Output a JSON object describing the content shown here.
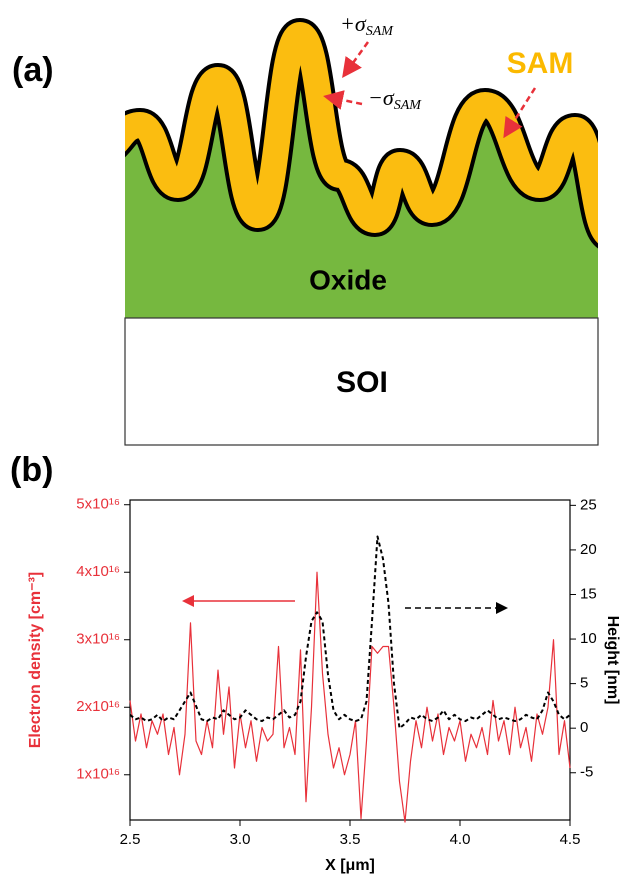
{
  "diagram": {
    "panel_label": "(a)",
    "plus_sigma": {
      "main": "+σ",
      "sub": "SAM"
    },
    "minus_sigma": {
      "main": "−σ",
      "sub": "SAM"
    },
    "sam_label": "SAM",
    "oxide_label": "Oxide",
    "soi_label": "SOI"
  },
  "chart_data": {
    "type": "line",
    "panel_label": "(b)",
    "xlabel": "X [μm]",
    "ylabel": "Electron density [cm⁻³]",
    "y2label": "Height [nm]",
    "x": [
      2.5,
      2.525,
      2.55,
      2.575,
      2.6,
      2.625,
      2.65,
      2.675,
      2.7,
      2.725,
      2.75,
      2.775,
      2.8,
      2.825,
      2.85,
      2.875,
      2.9,
      2.925,
      2.95,
      2.975,
      3.0,
      3.025,
      3.05,
      3.075,
      3.1,
      3.125,
      3.15,
      3.175,
      3.2,
      3.225,
      3.25,
      3.275,
      3.3,
      3.325,
      3.35,
      3.375,
      3.4,
      3.425,
      3.45,
      3.475,
      3.5,
      3.525,
      3.55,
      3.575,
      3.6,
      3.625,
      3.65,
      3.675,
      3.7,
      3.725,
      3.75,
      3.775,
      3.8,
      3.825,
      3.85,
      3.875,
      3.9,
      3.925,
      3.95,
      3.975,
      4.0,
      4.025,
      4.05,
      4.075,
      4.1,
      4.125,
      4.15,
      4.175,
      4.2,
      4.225,
      4.25,
      4.275,
      4.3,
      4.325,
      4.35,
      4.375,
      4.4,
      4.425,
      4.45,
      4.475,
      4.5
    ],
    "series": [
      {
        "color": "#e8313a",
        "dash": false,
        "values": [
          2.1e+16,
          1.5e+16,
          1.9e+16,
          1.4e+16,
          1.8e+16,
          1.6e+16,
          1.9e+16,
          1.3e+16,
          1.7e+16,
          1e+16,
          1.6e+16,
          3.25e+16,
          1.5e+16,
          1.3e+16,
          1.8e+16,
          1.4e+16,
          2.55e+16,
          1.6e+16,
          2.3e+16,
          1.1e+16,
          1.9e+16,
          1.4e+16,
          1.8e+16,
          1.2e+16,
          1.7e+16,
          1.5e+16,
          1.6e+16,
          2.9e+16,
          1.4e+16,
          1.7e+16,
          1.3e+16,
          2.85e+16,
          6000000000000000.0,
          2e+16,
          4e+16,
          2.5e+16,
          1.6e+16,
          1.1e+16,
          1.4e+16,
          1e+16,
          1.3e+16,
          1.8e+16,
          3500000000000000.0,
          1.5e+16,
          2.9e+16,
          2.8e+16,
          2.9e+16,
          2.9e+16,
          2e+16,
          9000000000000000.0,
          3000000000000000.0,
          1.2e+16,
          1.8e+16,
          1.4e+16,
          2e+16,
          1.5e+16,
          1.9e+16,
          1.3e+16,
          1.7e+16,
          1.5e+16,
          1.8e+16,
          1.2e+16,
          1.6e+16,
          1.4e+16,
          1.7e+16,
          1.3e+16,
          2.1e+16,
          1.5e+16,
          1.8e+16,
          1.3e+16,
          2e+16,
          1.4e+16,
          1.7e+16,
          1.2e+16,
          1.9e+16,
          1.6e+16,
          2e+16,
          3e+16,
          1.3e+16,
          1.8e+16,
          1.1e+16
        ]
      },
      {
        "color": "#000000",
        "dash": true,
        "axis": "y2",
        "values": [
          1.5,
          1,
          1.2,
          0.8,
          1,
          1.5,
          0.8,
          1.2,
          1,
          2,
          3,
          4,
          2.5,
          1,
          0.8,
          1.2,
          1,
          2,
          1.5,
          1,
          1.2,
          2,
          1.5,
          1,
          0.8,
          1.2,
          1,
          1.5,
          2,
          1.2,
          1.5,
          3,
          8,
          12,
          13,
          12,
          6,
          2,
          1,
          1.5,
          1,
          0.8,
          1,
          3,
          12,
          21.5,
          19,
          14,
          5,
          0,
          0.5,
          1.2,
          1,
          1.5,
          1,
          0.8,
          1.2,
          2,
          1,
          1.5,
          1,
          0.8,
          1.2,
          1,
          1.5,
          2,
          1.5,
          1,
          1.2,
          1,
          0.8,
          1,
          1.5,
          1.2,
          1,
          2,
          4,
          3,
          1.5,
          1,
          1.5
        ]
      }
    ],
    "xlim": [
      2.5,
      4.5
    ],
    "xticks": [
      2.5,
      {
        "value": 3,
        "label": "3.0"
      },
      3.5,
      {
        "value": 4,
        "label": "4.0"
      },
      4.5
    ],
    "ylim": [
      3300000000000000.0,
      5.07e+16
    ],
    "yticks": [
      {
        "value": 1e+16,
        "label": "1x10¹⁶"
      },
      {
        "value": 2e+16,
        "label": "2x10¹⁶"
      },
      {
        "value": 3e+16,
        "label": "3x10¹⁶"
      },
      {
        "value": 4e+16,
        "label": "4x10¹⁶"
      },
      {
        "value": 5e+16,
        "label": "5x10¹⁶"
      }
    ],
    "y2lim": [
      -10.3,
      25.6
    ],
    "y2ticks": [
      -5,
      0,
      5,
      10,
      15,
      20,
      25
    ],
    "ylabel_color": "#e8313a"
  }
}
